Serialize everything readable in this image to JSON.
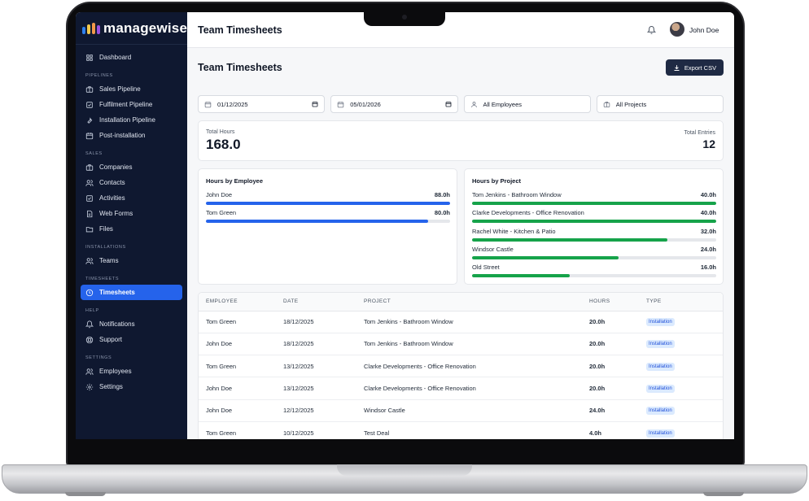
{
  "app": {
    "brand": "managewise",
    "title": "Team Timesheets",
    "user": "John Doe"
  },
  "sidebar": {
    "items": [
      {
        "type": "item",
        "label": "Dashboard",
        "icon": "grid-icon",
        "name": "sidebar-item-dashboard"
      },
      {
        "type": "section",
        "label": "PIPELINES"
      },
      {
        "type": "item",
        "label": "Sales Pipeline",
        "icon": "briefcase-icon",
        "name": "sidebar-item-sales-pipeline"
      },
      {
        "type": "item",
        "label": "Fulfilment Pipeline",
        "icon": "checkbox-icon",
        "name": "sidebar-item-fulfilment-pipeline"
      },
      {
        "type": "item",
        "label": "Installation Pipeline",
        "icon": "wrench-icon",
        "name": "sidebar-item-installation-pipeline"
      },
      {
        "type": "item",
        "label": "Post-installation",
        "icon": "calendar-icon",
        "name": "sidebar-item-post-installation"
      },
      {
        "type": "section",
        "label": "SALES"
      },
      {
        "type": "item",
        "label": "Companies",
        "icon": "briefcase-icon",
        "name": "sidebar-item-companies"
      },
      {
        "type": "item",
        "label": "Contacts",
        "icon": "users-icon",
        "name": "sidebar-item-contacts"
      },
      {
        "type": "item",
        "label": "Activities",
        "icon": "checkbox-icon",
        "name": "sidebar-item-activities"
      },
      {
        "type": "item",
        "label": "Web Forms",
        "icon": "document-icon",
        "name": "sidebar-item-web-forms"
      },
      {
        "type": "item",
        "label": "Files",
        "icon": "folder-icon",
        "name": "sidebar-item-files"
      },
      {
        "type": "section",
        "label": "INSTALLATIONS"
      },
      {
        "type": "item",
        "label": "Teams",
        "icon": "users-icon",
        "name": "sidebar-item-teams"
      },
      {
        "type": "section",
        "label": "TIMESHEETS"
      },
      {
        "type": "item",
        "label": "Timesheets",
        "icon": "clock-icon",
        "name": "sidebar-item-timesheets",
        "active": true
      },
      {
        "type": "section",
        "label": "HELP"
      },
      {
        "type": "item",
        "label": "Notifications",
        "icon": "bell-icon",
        "name": "sidebar-item-notifications"
      },
      {
        "type": "item",
        "label": "Support",
        "icon": "lifebuoy-icon",
        "name": "sidebar-item-support"
      },
      {
        "type": "section",
        "label": "SETTINGS"
      },
      {
        "type": "item",
        "label": "Employees",
        "icon": "users-icon",
        "name": "sidebar-item-employees"
      },
      {
        "type": "item",
        "label": "Settings",
        "icon": "gear-icon",
        "name": "sidebar-item-settings"
      }
    ]
  },
  "main": {
    "page_title": "Team Timesheets",
    "export_label": "Export CSV",
    "filters": {
      "date_from": "01/12/2025",
      "date_to": "05/01/2026",
      "employee": "All Employees",
      "project": "All Projects"
    },
    "totals": {
      "hours_label": "Total Hours",
      "hours_value": "168.0",
      "entries_label": "Total Entries",
      "entries_value": "12"
    },
    "by_employee": {
      "title": "Hours by Employee",
      "max": 88,
      "color": "#2563eb",
      "rows": [
        {
          "label": "John Doe",
          "value_label": "88.0h",
          "value": 88
        },
        {
          "label": "Tom Green",
          "value_label": "80.0h",
          "value": 80
        }
      ]
    },
    "by_project": {
      "title": "Hours by Project",
      "max": 40,
      "color": "#16a34a",
      "rows": [
        {
          "label": "Tom Jenkins - Bathroom Window",
          "value_label": "40.0h",
          "value": 40
        },
        {
          "label": "Clarke Developments - Office Renovation",
          "value_label": "40.0h",
          "value": 40
        },
        {
          "label": "Rachel White - Kitchen & Patio",
          "value_label": "32.0h",
          "value": 32
        },
        {
          "label": "Windsor Castle",
          "value_label": "24.0h",
          "value": 24
        },
        {
          "label": "Old Street",
          "value_label": "16.0h",
          "value": 16
        }
      ]
    },
    "table": {
      "columns": [
        "EMPLOYEE",
        "DATE",
        "PROJECT",
        "HOURS",
        "TYPE"
      ],
      "rows": [
        [
          "Tom Green",
          "18/12/2025",
          "Tom Jenkins - Bathroom Window",
          "20.0h",
          "Installation"
        ],
        [
          "John Doe",
          "18/12/2025",
          "Tom Jenkins - Bathroom Window",
          "20.0h",
          "Installation"
        ],
        [
          "Tom Green",
          "13/12/2025",
          "Clarke Developments - Office Renovation",
          "20.0h",
          "Installation"
        ],
        [
          "John Doe",
          "13/12/2025",
          "Clarke Developments - Office Renovation",
          "20.0h",
          "Installation"
        ],
        [
          "John Doe",
          "12/12/2025",
          "Windsor Castle",
          "24.0h",
          "Installation"
        ],
        [
          "Tom Green",
          "10/12/2025",
          "Test Deal",
          "4.0h",
          "Installation"
        ]
      ]
    }
  }
}
